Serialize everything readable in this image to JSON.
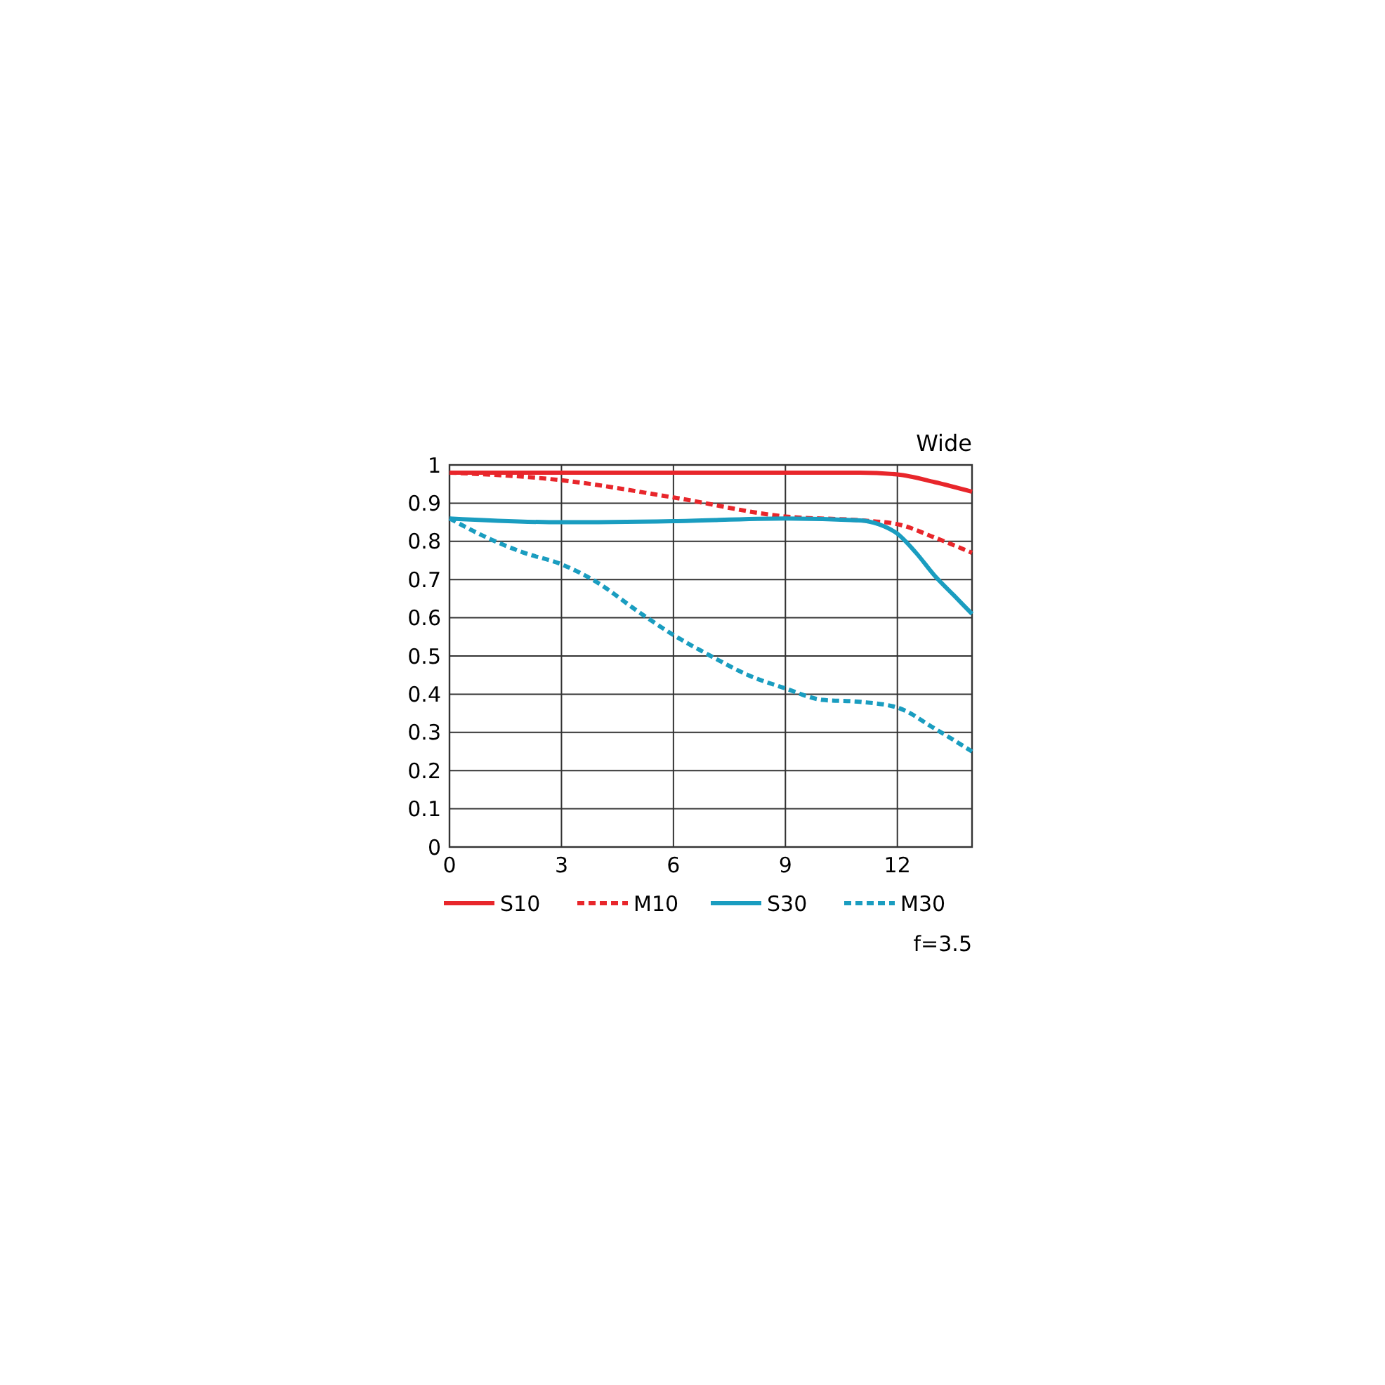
{
  "chart_data": {
    "type": "line",
    "title": "Wide",
    "annotations": [
      "f=3.5"
    ],
    "xlim": [
      0,
      14
    ],
    "xticks": [
      0,
      3,
      6,
      9,
      12
    ],
    "ylim": [
      0,
      1
    ],
    "yticks": [
      0,
      0.1,
      0.2,
      0.3,
      0.4,
      0.5,
      0.6,
      0.7,
      0.8,
      0.9,
      1
    ],
    "grid": true,
    "legend": "bottom",
    "marker": "none",
    "series": [
      {
        "name": "S10",
        "color": "#e8262b",
        "line_style": "solid",
        "x": [
          0,
          3,
          6,
          9,
          11,
          12,
          13,
          14
        ],
        "values": [
          0.98,
          0.98,
          0.98,
          0.98,
          0.98,
          0.975,
          0.955,
          0.93
        ]
      },
      {
        "name": "M10",
        "color": "#e8262b",
        "line_style": "dashed",
        "x": [
          0,
          3,
          6,
          9,
          11,
          12,
          13,
          14
        ],
        "values": [
          0.98,
          0.96,
          0.915,
          0.865,
          0.855,
          0.845,
          0.81,
          0.77
        ]
      },
      {
        "name": "S30",
        "color": "#1a9dc0",
        "line_style": "solid",
        "x": [
          0,
          3,
          6,
          9,
          11,
          11.5,
          12,
          12.5,
          13,
          13.5,
          14
        ],
        "values": [
          0.86,
          0.85,
          0.853,
          0.86,
          0.855,
          0.845,
          0.82,
          0.77,
          0.71,
          0.66,
          0.61
        ]
      },
      {
        "name": "M30",
        "color": "#1a9dc0",
        "line_style": "dashed",
        "x": [
          0,
          1,
          2,
          3,
          4,
          5,
          6,
          7,
          8,
          9,
          10,
          11,
          12,
          13,
          14
        ],
        "values": [
          0.86,
          0.81,
          0.77,
          0.74,
          0.69,
          0.62,
          0.555,
          0.5,
          0.45,
          0.415,
          0.385,
          0.38,
          0.365,
          0.31,
          0.25
        ]
      }
    ]
  }
}
